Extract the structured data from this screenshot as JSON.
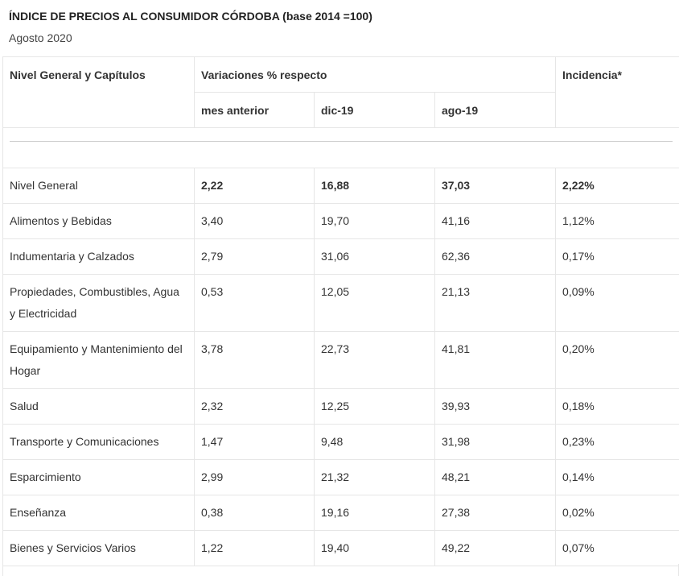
{
  "header": {
    "title": "ÍNDICE DE PRECIOS AL CONSUMIDOR CÓRDOBA (base 2014 =100)",
    "subtitle": "Agosto 2020"
  },
  "table": {
    "col_headers": {
      "category": "Nivel General y Capítulos",
      "variations": "Variaciones % respecto",
      "incidence": "Incidencia*",
      "prev_month": "mes anterior",
      "dec19": "dic-19",
      "aug19": "ago-19"
    },
    "rows": [
      {
        "name": "Nivel General",
        "prev_month": "2,22",
        "dec19": "16,88",
        "aug19": "37,03",
        "incidence": "2,22%"
      },
      {
        "name": "Alimentos y Bebidas",
        "prev_month": "3,40",
        "dec19": "19,70",
        "aug19": "41,16",
        "incidence": "1,12%"
      },
      {
        "name": "Indumentaria y Calzados",
        "prev_month": "2,79",
        "dec19": "31,06",
        "aug19": "62,36",
        "incidence": "0,17%"
      },
      {
        "name": "Propiedades, Combustibles, Agua y Electricidad",
        "prev_month": "0,53",
        "dec19": "12,05",
        "aug19": "21,13",
        "incidence": "0,09%"
      },
      {
        "name": "Equipamiento y Mantenimiento del Hogar",
        "prev_month": "3,78",
        "dec19": "22,73",
        "aug19": "41,81",
        "incidence": "0,20%"
      },
      {
        "name": "Salud",
        "prev_month": "2,32",
        "dec19": "12,25",
        "aug19": "39,93",
        "incidence": "0,18%"
      },
      {
        "name": "Transporte y Comunicaciones",
        "prev_month": "1,47",
        "dec19": "9,48",
        "aug19": "31,98",
        "incidence": "0,23%"
      },
      {
        "name": "Esparcimiento",
        "prev_month": "2,99",
        "dec19": "21,32",
        "aug19": "48,21",
        "incidence": "0,14%"
      },
      {
        "name": "Enseñanza",
        "prev_month": "0,38",
        "dec19": "19,16",
        "aug19": "27,38",
        "incidence": "0,02%"
      },
      {
        "name": "Bienes y Servicios Varios",
        "prev_month": "1,22",
        "dec19": "19,40",
        "aug19": "49,22",
        "incidence": "0,07%"
      }
    ]
  }
}
